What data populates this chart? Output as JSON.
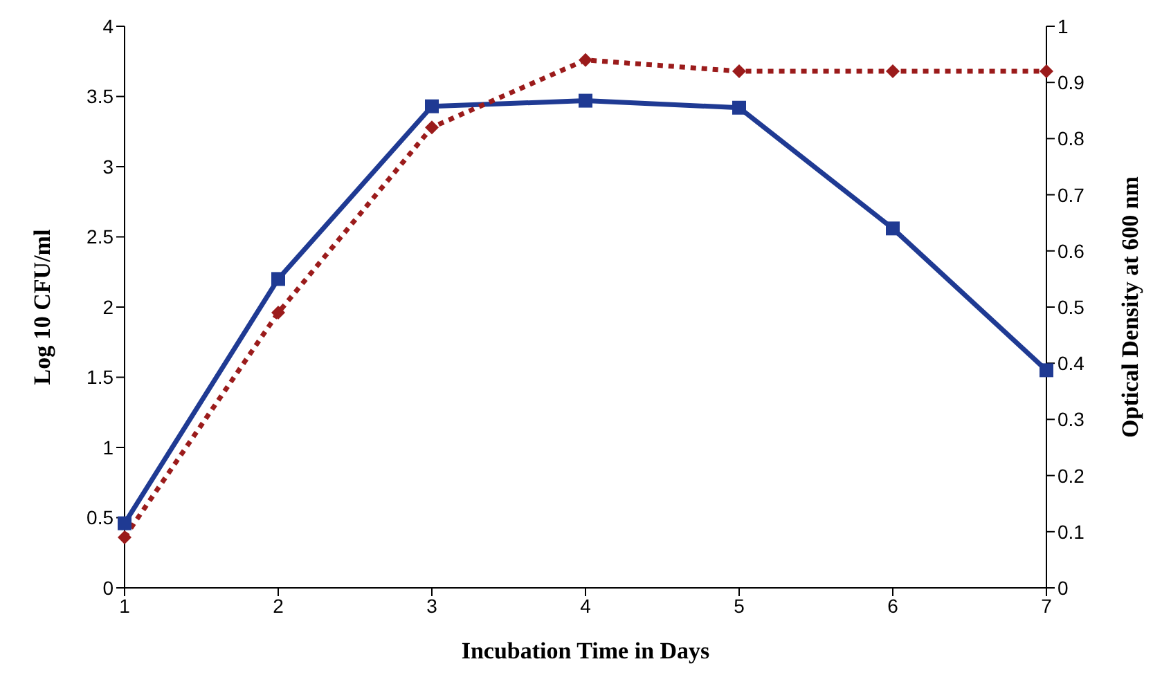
{
  "chart_data": {
    "type": "line",
    "xlabel": "Incubation Time in Days",
    "ylabel": "Log 10 CFU/ml",
    "y2label": "Optical Density at 600 nm",
    "categories": [
      "1",
      "2",
      "3",
      "4",
      "5",
      "6",
      "7"
    ],
    "ylim": [
      0,
      4
    ],
    "yticks": [
      0,
      0.5,
      1,
      1.5,
      2,
      2.5,
      3,
      3.5,
      4
    ],
    "y2lim": [
      0,
      1
    ],
    "y2ticks": [
      0,
      0.1,
      0.2,
      0.3,
      0.4,
      0.5,
      0.6,
      0.7,
      0.8,
      0.9,
      1
    ],
    "grid": false,
    "legend": false,
    "series": [
      {
        "color": "#1f3a93",
        "values": [
          0.46,
          2.2,
          3.43,
          3.47,
          3.42,
          2.56,
          1.55
        ],
        "marker": "square",
        "line_style": "solid"
      },
      {
        "color": "#9b1b1b",
        "axis": "y2",
        "values": [
          0.09,
          0.49,
          0.82,
          0.94,
          0.92,
          0.92,
          0.92
        ],
        "marker": "diamond",
        "line_style": "dotted"
      }
    ]
  }
}
